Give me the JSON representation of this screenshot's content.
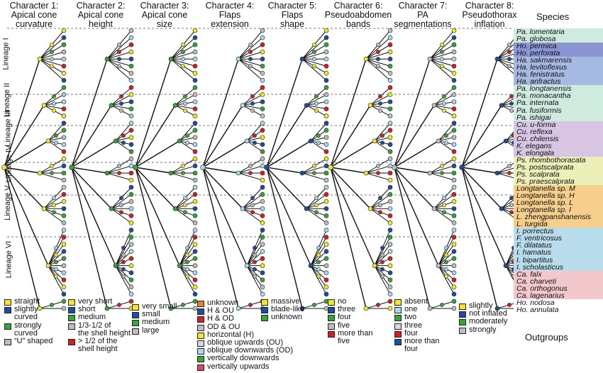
{
  "characters": [
    {
      "title": "Character 1:\nApical cone\ncurvature",
      "root": "yellow",
      "legend": [
        {
          "label": "straight",
          "color": "#f2e52b"
        },
        {
          "label": "slightly\ncurved",
          "color": "#1f4e9b"
        },
        {
          "label": "strongly\ncurved",
          "color": "#3aa43a"
        },
        {
          "label": "“U” shaped",
          "color": "#bdbdbd"
        }
      ]
    },
    {
      "title": "Character 2:\nApical cone\nheight",
      "root": "green",
      "legend": [
        {
          "label": "very short",
          "color": "#f2e52b"
        },
        {
          "label": "short",
          "color": "#1f4e9b"
        },
        {
          "label": "medium",
          "color": "#3aa43a"
        },
        {
          "label": "1/3-1/2 of\nthe shell height",
          "color": "#bdbdbd"
        },
        {
          "label": "> 1/2 of the\nshell height",
          "color": "#d42020"
        }
      ]
    },
    {
      "title": "Character 3:\nApical cone\nsize",
      "root": "green",
      "legend": [
        {
          "label": "very small",
          "color": "#f2e52b"
        },
        {
          "label": "small",
          "color": "#1f4e9b"
        },
        {
          "label": "medium",
          "color": "#3aa43a"
        },
        {
          "label": "large",
          "color": "#bdbdbd"
        }
      ]
    },
    {
      "title": "Character 4:\nFlaps\nextension",
      "root": "lightblue",
      "legend": [
        {
          "label": "unknown",
          "color": "#e8821e"
        },
        {
          "label": "H & OU",
          "color": "#1f4e9b"
        },
        {
          "label": "H & OD",
          "color": "#d42020"
        },
        {
          "label": "OD & OU",
          "color": "#bdbdbd"
        },
        {
          "label": "horizontal (H)",
          "color": "#f2e52b"
        },
        {
          "label": "oblique upwards (OU)",
          "color": "#d8d8d8"
        },
        {
          "label": "oblique downwards (OD)",
          "color": "#a8d8ea"
        },
        {
          "label": "vertically downwards",
          "color": "#3aa43a"
        },
        {
          "label": "vertically upwards",
          "color": "#e0455a"
        }
      ]
    },
    {
      "title": "Character 5:\nFlaps\nshape",
      "root": "blue",
      "legend": [
        {
          "label": "massive",
          "color": "#f2e52b"
        },
        {
          "label": "blade-like",
          "color": "#1f4e9b"
        },
        {
          "label": "unknown",
          "color": "#3aa43a"
        }
      ]
    },
    {
      "title": "Character 6:\nPseudoabdomen\nbands",
      "root": "yellow",
      "legend": [
        {
          "label": "no",
          "color": "#f2e52b"
        },
        {
          "label": "three",
          "color": "#1f4e9b"
        },
        {
          "label": "four",
          "color": "#3aa43a"
        },
        {
          "label": "five",
          "color": "#bdbdbd"
        },
        {
          "label": "more than\nfive",
          "color": "#d42020"
        }
      ]
    },
    {
      "title": "Character 7:\nPA\nsegmentations",
      "root": "gray",
      "legend": [
        {
          "label": "absent",
          "color": "#f2e52b"
        },
        {
          "label": "one",
          "color": "#a8d8ea"
        },
        {
          "label": "two",
          "color": "#3aa43a"
        },
        {
          "label": "three",
          "color": "#d8d8d8"
        },
        {
          "label": "four",
          "color": "#d42020"
        },
        {
          "label": "more than\nfour",
          "color": "#1f4e9b"
        }
      ]
    },
    {
      "title": "Character 8:\nPseudothorax\ninflation",
      "root": "blue",
      "legend": [
        {
          "label": "slightly",
          "color": "#f2e52b"
        },
        {
          "label": "not inflated",
          "color": "#1f4e9b"
        },
        {
          "label": "moderately",
          "color": "#3aa43a"
        },
        {
          "label": "strongly",
          "color": "#bdbdbd"
        }
      ]
    }
  ],
  "lineages": [
    "Lineage I",
    "Lineage II",
    "Lineage III",
    "Lineage IV",
    "Lineage V",
    "Lineage VI"
  ],
  "species_title": "Species",
  "outgroups_label": "Outgroups",
  "species": [
    "Pa. lomentaria",
    "Pa. globosa",
    "Ho. permica",
    "Ho. perforata",
    "Ha. sakmarensis",
    "Ha. levitoflexus",
    "Ha. fenistratus",
    "Ha. anfractus",
    "Pa. longtanensis",
    "Pa. monacantha",
    "Pa. internata",
    "Pa. fusiformis",
    "Pa. ishigai",
    "Cu. u-forma",
    "Cu. reflexa",
    "Cu. chilensis",
    "K. elegans",
    "K. elongata",
    "Ps. rhombothoracata",
    "Ps. postscalprata",
    "Ps. scalprata",
    "Ps. praescalprata",
    "Longtanella sp. M",
    "Longtanella sp. H",
    "Longtanella sp. L",
    "Longtanella sp. I",
    "L. zhengpanshanensis",
    "L. turgida",
    "I. porrectus",
    "F. ventricosus",
    "F. dilatatus",
    "I. hamatus",
    "I. bipartitus",
    "I. scholasticus",
    "Ca. falx",
    "Ca. charveti",
    "Ca. orthogonus",
    "Ca. lagenarius",
    "Ho. nodosa",
    "Ho. annulata"
  ],
  "species_bands": [
    {
      "color": "#cfeadf"
    },
    {
      "color": "#8c95d3"
    },
    {
      "color": "#a6b9e3"
    },
    {
      "color": "#cfeadf"
    },
    {
      "color": "#d7c5e3"
    },
    {
      "color": "#ecf0b8"
    },
    {
      "color": "#f7cf8c"
    },
    {
      "color": "#b9dcec"
    },
    {
      "color": "#f3c8cc"
    },
    {
      "color": "#ffffff"
    }
  ]
}
